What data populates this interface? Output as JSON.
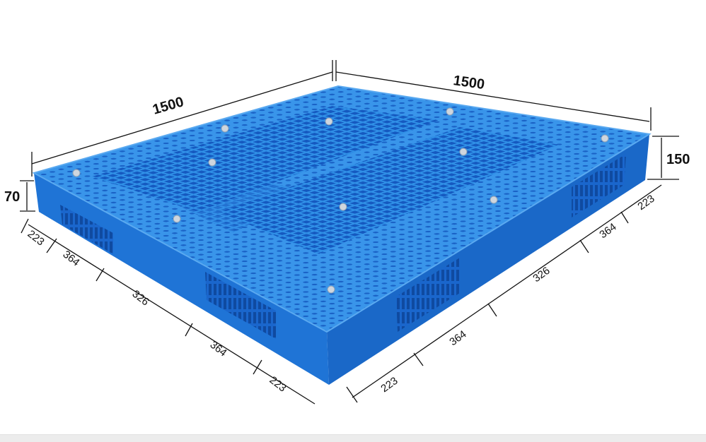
{
  "colors": {
    "pallet_top": "#2f8fe6",
    "pallet_side": "#1c6fcf",
    "pallet_dark": "#1458b0",
    "dimension_line": "#111111"
  },
  "dimensions": {
    "length_left": "1500",
    "length_right": "1500",
    "height_total": "150",
    "height_entry": "70",
    "left_side": [
      "223",
      "364",
      "326",
      "364",
      "223"
    ],
    "right_side": [
      "223",
      "364",
      "326",
      "364",
      "223"
    ]
  }
}
